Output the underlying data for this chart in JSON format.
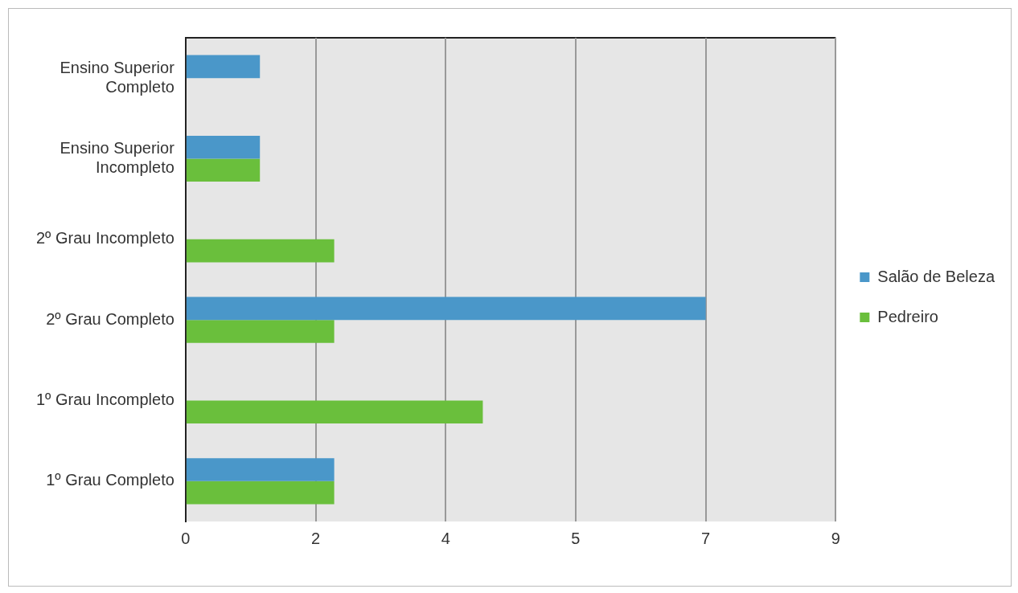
{
  "chart_data": {
    "type": "bar",
    "orientation": "horizontal",
    "categories": [
      "Ensino Superior Completo",
      "Ensino Superior Incompleto",
      "2º Grau Incompleto",
      "2º Grau Completo",
      "1º Grau Incompleto",
      "1º Grau Completo"
    ],
    "series": [
      {
        "name": "Salão de Beleza",
        "color": "#4a97c9",
        "values": [
          1,
          1,
          null,
          7,
          null,
          2
        ]
      },
      {
        "name": "Pedreiro",
        "color": "#6abf3c",
        "values": [
          null,
          1,
          2,
          2,
          4,
          2
        ]
      }
    ],
    "xlim": [
      0,
      8.75
    ],
    "xticks": [
      0,
      {
        "value": 1.75,
        "label": "2"
      },
      {
        "value": 3.5,
        "label": "4"
      },
      {
        "value": 5.25,
        "label": "5"
      },
      7,
      {
        "value": 8.75,
        "label": "9"
      }
    ],
    "grid": "x",
    "legend": "right"
  }
}
